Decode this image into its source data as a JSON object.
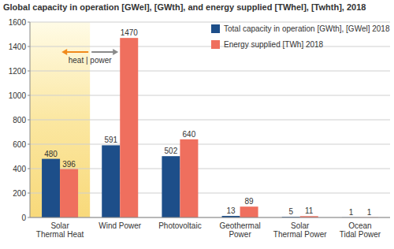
{
  "chart_data": {
    "type": "bar",
    "title": "Global capacity in operation [GWel], [GWth], and energy supplied [TWhel], [Twhth], 2018",
    "categories": [
      "Solar Thermal Heat",
      "Wind Power",
      "Photovoltaic",
      "Geothermal Power",
      "Solar Thermal Power",
      "Ocean Tidal Power"
    ],
    "series": [
      {
        "name": "Total capacity in operation [GWth], [GWel] 2018",
        "color": "#1d4e89",
        "values": [
          480,
          591,
          502,
          13,
          5,
          1
        ]
      },
      {
        "name": "Energy supplied [TWh] 2018",
        "color": "#ef6f5e",
        "values": [
          396,
          1470,
          640,
          89,
          11,
          1
        ]
      }
    ],
    "ylim": [
      0,
      1600
    ],
    "yticks": [
      0,
      200,
      400,
      600,
      800,
      1000,
      1200,
      1400,
      1600
    ],
    "grid": true,
    "data_labels": true,
    "legend": "top-right",
    "annotation": "heat | power"
  }
}
